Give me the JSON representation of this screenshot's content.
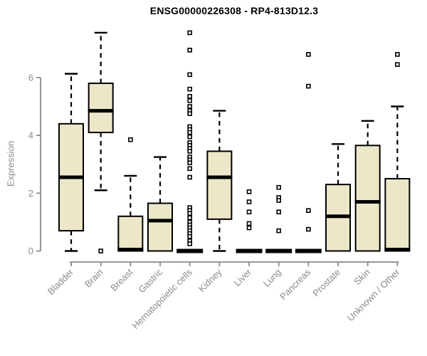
{
  "chart_data": {
    "type": "boxplot",
    "title": "ENSG00000226308 - RP4-813D12.3",
    "xlabel": "",
    "ylabel": "Expression",
    "ylim": [
      0,
      6
    ],
    "yticks": [
      0,
      2,
      4,
      6
    ],
    "grid": false,
    "legend": null,
    "categories": [
      "Bladder",
      "Brain",
      "Breast",
      "Gastric",
      "Hematopoietic cells",
      "Kidney",
      "Liver",
      "Lung",
      "Pancreas",
      "Prostate",
      "Skin",
      "Unknown / Other"
    ],
    "series": [
      {
        "name": "Bladder",
        "whisker_low": 0,
        "q1": 0.7,
        "median": 2.55,
        "q3": 4.4,
        "whisker_high": 6.13,
        "outliers": []
      },
      {
        "name": "Brain",
        "whisker_low": 2.1,
        "q1": 4.1,
        "median": 4.85,
        "q3": 5.8,
        "whisker_high": 7.55,
        "outliers": [
          0
        ]
      },
      {
        "name": "Breast",
        "whisker_low": 0,
        "q1": 0,
        "median": 0.05,
        "q3": 1.2,
        "whisker_high": 2.6,
        "outliers": [
          3.85
        ]
      },
      {
        "name": "Gastric",
        "whisker_low": 0,
        "q1": 0,
        "median": 1.05,
        "q3": 1.65,
        "whisker_high": 3.25,
        "outliers": []
      },
      {
        "name": "Hematopoietic cells",
        "whisker_low": 0,
        "q1": 0,
        "median": 0,
        "q3": 0,
        "whisker_high": 0,
        "outliers": [
          7.55,
          6.95,
          6.1,
          5.6,
          5.35,
          5.2,
          5.0,
          4.85,
          4.75,
          4.3,
          4.2,
          4.1,
          3.95,
          3.75,
          3.65,
          3.55,
          3.45,
          3.25,
          3.15,
          3.05,
          2.85,
          2.55,
          1.5,
          1.4,
          1.3,
          1.15,
          1.0,
          0.9,
          0.8,
          0.7,
          0.6,
          0.5,
          0.35,
          0.25
        ]
      },
      {
        "name": "Kidney",
        "whisker_low": 0,
        "q1": 1.1,
        "median": 2.55,
        "q3": 3.45,
        "whisker_high": 4.85,
        "outliers": []
      },
      {
        "name": "Liver",
        "whisker_low": 0,
        "q1": 0,
        "median": 0,
        "q3": 0,
        "whisker_high": 0,
        "outliers": [
          2.05,
          1.7,
          1.35,
          0.95,
          0.8
        ]
      },
      {
        "name": "Lung",
        "whisker_low": 0,
        "q1": 0,
        "median": 0,
        "q3": 0,
        "whisker_high": 0,
        "outliers": [
          2.2,
          1.85,
          1.75,
          1.35,
          0.7
        ]
      },
      {
        "name": "Pancreas",
        "whisker_low": 0,
        "q1": 0,
        "median": 0,
        "q3": 0,
        "whisker_high": 0,
        "outliers": [
          6.8,
          5.7,
          1.4,
          0.75
        ]
      },
      {
        "name": "Prostate",
        "whisker_low": 0,
        "q1": 0,
        "median": 1.2,
        "q3": 2.3,
        "whisker_high": 3.7,
        "outliers": []
      },
      {
        "name": "Skin",
        "whisker_low": 0,
        "q1": 0,
        "median": 1.7,
        "q3": 3.65,
        "whisker_high": 4.5,
        "outliers": []
      },
      {
        "name": "Unknown / Other",
        "whisker_low": 0,
        "q1": 0,
        "median": 0.05,
        "q3": 2.5,
        "whisker_high": 5.0,
        "outliers": [
          6.8,
          6.45
        ]
      }
    ]
  },
  "style": {
    "background": "#ffffff",
    "box_fill": "#ECE7C9",
    "box_stroke": "#000000",
    "median_color": "#000000",
    "outlier_stroke": "#000000",
    "outlier_fill": "#ffffff",
    "axis_color": "#8a8a8a",
    "tick_text_color": "#8a8a8a",
    "title_color": "#000000"
  }
}
